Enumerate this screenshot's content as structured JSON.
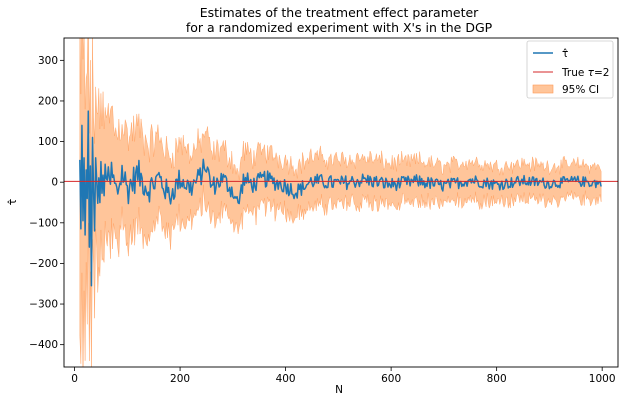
{
  "chart_data": {
    "type": "line",
    "title_line1": "Estimates of the treatment effect parameter",
    "title_line2": "for a randomized experiment with X's in the DGP",
    "xlabel": "N",
    "ylabel": "τ̂",
    "xlim": [
      -20,
      1030
    ],
    "ylim": [
      -455,
      355
    ],
    "x_ticks": [
      0,
      200,
      400,
      600,
      800,
      1000
    ],
    "y_ticks": [
      -400,
      -300,
      -200,
      -100,
      0,
      100,
      200,
      300
    ],
    "true_tau": 2,
    "grid": false,
    "legend_position": "top-right",
    "legend": {
      "estimate_label": "τ̂",
      "true_label_prefix": "True ",
      "true_label_tau": "τ",
      "true_label_suffix": "=2",
      "ci_label": "95% CI"
    },
    "colors": {
      "estimate": "#1f77b4",
      "true_line": "#d62728",
      "ci": "#ffbb88"
    },
    "n_start": 10,
    "n_end": 998,
    "n_step": 2,
    "estimate_anchor_points": [
      [
        10,
        55
      ],
      [
        12,
        -115
      ],
      [
        14,
        140
      ],
      [
        16,
        -95
      ],
      [
        18,
        60
      ],
      [
        20,
        -130
      ],
      [
        22,
        30
      ],
      [
        24,
        -40
      ],
      [
        26,
        175
      ],
      [
        28,
        -160
      ],
      [
        30,
        40
      ],
      [
        32,
        -255
      ],
      [
        34,
        110
      ],
      [
        36,
        -20
      ],
      [
        38,
        -120
      ],
      [
        40,
        60
      ],
      [
        45,
        -80
      ],
      [
        50,
        40
      ],
      [
        55,
        -70
      ],
      [
        60,
        75
      ],
      [
        65,
        -40
      ],
      [
        70,
        30
      ],
      [
        80,
        -50
      ],
      [
        90,
        45
      ],
      [
        100,
        -30
      ],
      [
        120,
        35
      ],
      [
        140,
        -30
      ],
      [
        160,
        20
      ],
      [
        180,
        -60
      ],
      [
        200,
        15
      ],
      [
        220,
        -25
      ],
      [
        240,
        30
      ],
      [
        248,
        75
      ],
      [
        260,
        -20
      ],
      [
        280,
        15
      ],
      [
        300,
        -35
      ],
      [
        310,
        -95
      ],
      [
        320,
        10
      ],
      [
        340,
        -10
      ],
      [
        360,
        15
      ],
      [
        400,
        -15
      ],
      [
        420,
        -40
      ],
      [
        450,
        5
      ],
      [
        500,
        -5
      ],
      [
        550,
        10
      ],
      [
        600,
        -10
      ],
      [
        650,
        5
      ],
      [
        700,
        -15
      ],
      [
        750,
        10
      ],
      [
        800,
        -10
      ],
      [
        850,
        5
      ],
      [
        900,
        -5
      ],
      [
        950,
        5
      ],
      [
        998,
        -5
      ]
    ]
  }
}
